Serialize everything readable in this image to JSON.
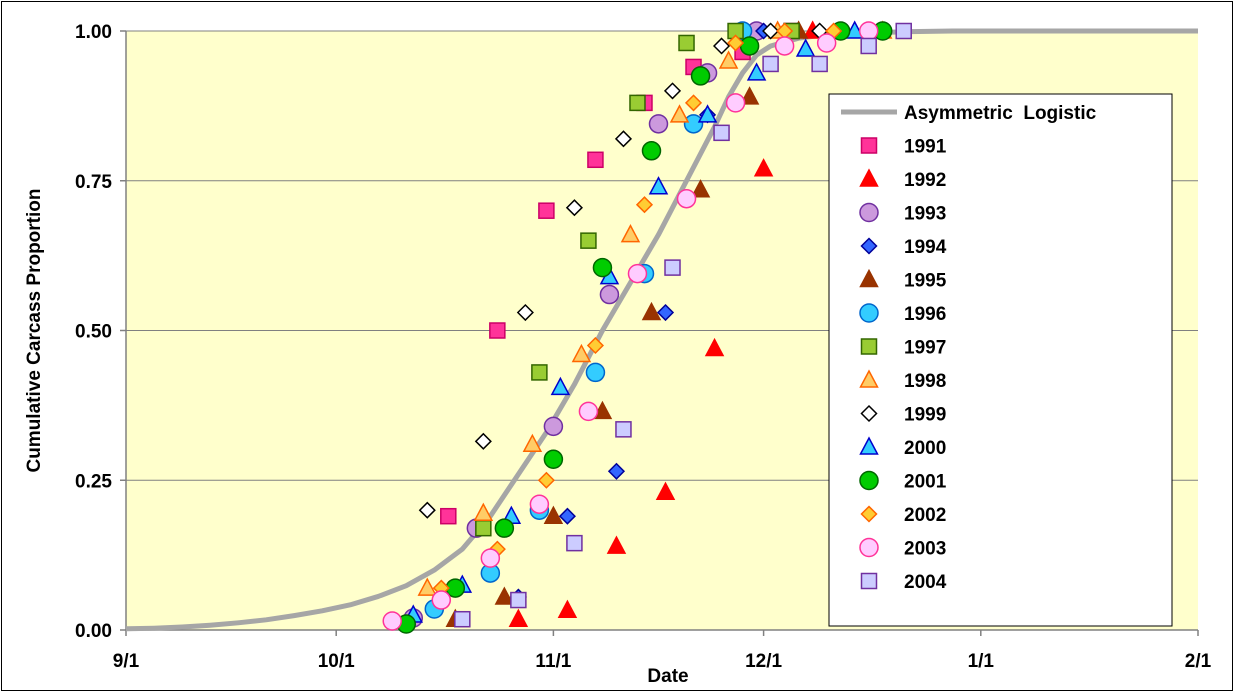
{
  "chart_data": {
    "type": "scatter",
    "title": "",
    "xlabel": "Date",
    "ylabel": "Cumulative Carcass Proportion",
    "x_unit": "day of season (9/1 = 0)",
    "xlim": [
      0,
      153
    ],
    "ylim": [
      0,
      1
    ],
    "x_ticks": [
      {
        "label": "9/1",
        "value": 0
      },
      {
        "label": "10/1",
        "value": 30
      },
      {
        "label": "11/1",
        "value": 61
      },
      {
        "label": "12/1",
        "value": 91
      },
      {
        "label": "1/1",
        "value": 122
      },
      {
        "label": "2/1",
        "value": 153
      }
    ],
    "y_ticks": [
      {
        "label": "0.00",
        "value": 0
      },
      {
        "label": "0.25",
        "value": 0.25
      },
      {
        "label": "0.50",
        "value": 0.5
      },
      {
        "label": "0.75",
        "value": 0.75
      },
      {
        "label": "1.00",
        "value": 1
      }
    ],
    "grid": true,
    "plot_background": "#ffffcc",
    "legend_position": "right",
    "fit_curve": {
      "name": "Asymmetric  Logistic",
      "color": "#a6a6a6",
      "points": [
        [
          0,
          0.002
        ],
        [
          4,
          0.003
        ],
        [
          8,
          0.005
        ],
        [
          12,
          0.008
        ],
        [
          16,
          0.012
        ],
        [
          20,
          0.017
        ],
        [
          24,
          0.024
        ],
        [
          28,
          0.032
        ],
        [
          32,
          0.042
        ],
        [
          36,
          0.056
        ],
        [
          40,
          0.074
        ],
        [
          44,
          0.1
        ],
        [
          48,
          0.135
        ],
        [
          52,
          0.19
        ],
        [
          56,
          0.26
        ],
        [
          60,
          0.33
        ],
        [
          64,
          0.41
        ],
        [
          68,
          0.5
        ],
        [
          72,
          0.58
        ],
        [
          76,
          0.66
        ],
        [
          80,
          0.75
        ],
        [
          84,
          0.84
        ],
        [
          86,
          0.89
        ],
        [
          88,
          0.93
        ],
        [
          90,
          0.96
        ],
        [
          92,
          0.975
        ],
        [
          96,
          0.988
        ],
        [
          100,
          0.994
        ],
        [
          106,
          0.997
        ],
        [
          112,
          0.999
        ],
        [
          118,
          1.0
        ],
        [
          126,
          1.0
        ],
        [
          140,
          1.0
        ],
        [
          153,
          1.0
        ]
      ]
    },
    "series": [
      {
        "name": "1991",
        "marker": "square",
        "fill": "#ff3399",
        "stroke": "#cc0066",
        "points": [
          [
            46,
            0.19
          ],
          [
            53,
            0.5
          ],
          [
            60,
            0.7
          ],
          [
            67,
            0.785
          ],
          [
            74,
            0.88
          ],
          [
            81,
            0.94
          ],
          [
            88,
            0.965
          ],
          [
            95,
            1.0
          ]
        ]
      },
      {
        "name": "1992",
        "marker": "triangle",
        "fill": "#ff0000",
        "stroke": "#ff0000",
        "points": [
          [
            56,
            0.018
          ],
          [
            63,
            0.033
          ],
          [
            70,
            0.14
          ],
          [
            77,
            0.23
          ],
          [
            84,
            0.47
          ],
          [
            91,
            0.77
          ],
          [
            98,
            1.0
          ]
        ]
      },
      {
        "name": "1993",
        "marker": "circle",
        "fill": "#cc99dd",
        "stroke": "#7030a0",
        "points": [
          [
            41,
            0.02
          ],
          [
            50,
            0.17
          ],
          [
            61,
            0.34
          ],
          [
            69,
            0.56
          ],
          [
            76,
            0.845
          ],
          [
            83,
            0.93
          ],
          [
            90,
            1.0
          ]
        ]
      },
      {
        "name": "1994",
        "marker": "diamond",
        "fill": "#3366ff",
        "stroke": "#000099",
        "points": [
          [
            56,
            0.055
          ],
          [
            63,
            0.19
          ],
          [
            70,
            0.265
          ],
          [
            77,
            0.53
          ],
          [
            83,
            0.86
          ],
          [
            91,
            1.0
          ]
        ]
      },
      {
        "name": "1995",
        "marker": "triangle",
        "fill": "#993300",
        "stroke": "#993300",
        "points": [
          [
            47,
            0.018
          ],
          [
            54,
            0.055
          ],
          [
            61,
            0.19
          ],
          [
            68,
            0.365
          ],
          [
            75,
            0.53
          ],
          [
            82,
            0.735
          ],
          [
            89,
            0.89
          ],
          [
            96,
            1.0
          ]
        ]
      },
      {
        "name": "1996",
        "marker": "circle",
        "fill": "#33ccff",
        "stroke": "#0066cc",
        "points": [
          [
            44,
            0.035
          ],
          [
            52,
            0.095
          ],
          [
            59,
            0.2
          ],
          [
            67,
            0.43
          ],
          [
            74,
            0.595
          ],
          [
            81,
            0.845
          ],
          [
            88,
            1.0
          ]
        ]
      },
      {
        "name": "1997",
        "marker": "square",
        "fill": "#99cc33",
        "stroke": "#336600",
        "points": [
          [
            51,
            0.17
          ],
          [
            59,
            0.43
          ],
          [
            66,
            0.65
          ],
          [
            73,
            0.88
          ],
          [
            80,
            0.98
          ],
          [
            87,
            1.0
          ],
          [
            95,
            1.0
          ]
        ]
      },
      {
        "name": "1998",
        "marker": "triangle",
        "fill": "#ffcc66",
        "stroke": "#ff6600",
        "points": [
          [
            43,
            0.07
          ],
          [
            51,
            0.195
          ],
          [
            58,
            0.31
          ],
          [
            65,
            0.46
          ],
          [
            72,
            0.66
          ],
          [
            79,
            0.86
          ],
          [
            86,
            0.95
          ],
          [
            93,
            1.0
          ],
          [
            108,
            1.0
          ]
        ]
      },
      {
        "name": "1999",
        "marker": "diamond",
        "fill": "#ffffff",
        "stroke": "#000000",
        "points": [
          [
            43,
            0.2
          ],
          [
            51,
            0.315
          ],
          [
            57,
            0.53
          ],
          [
            64,
            0.705
          ],
          [
            71,
            0.82
          ],
          [
            78,
            0.9
          ],
          [
            85,
            0.975
          ],
          [
            92,
            1.0
          ],
          [
            99,
            1.0
          ]
        ]
      },
      {
        "name": "2000",
        "marker": "triangle",
        "fill": "#33ccff",
        "stroke": "#0000cc",
        "points": [
          [
            41,
            0.025
          ],
          [
            48,
            0.075
          ],
          [
            55,
            0.19
          ],
          [
            62,
            0.405
          ],
          [
            69,
            0.59
          ],
          [
            76,
            0.74
          ],
          [
            83,
            0.86
          ],
          [
            90,
            0.93
          ],
          [
            97,
            0.97
          ],
          [
            104,
            1.0
          ]
        ]
      },
      {
        "name": "2001",
        "marker": "circle",
        "fill": "#00cc00",
        "stroke": "#006600",
        "points": [
          [
            40,
            0.01
          ],
          [
            47,
            0.07
          ],
          [
            54,
            0.17
          ],
          [
            61,
            0.285
          ],
          [
            68,
            0.605
          ],
          [
            75,
            0.8
          ],
          [
            82,
            0.925
          ],
          [
            89,
            0.975
          ],
          [
            102,
            1.0
          ],
          [
            108,
            1.0
          ]
        ]
      },
      {
        "name": "2002",
        "marker": "diamond",
        "fill": "#ffcc33",
        "stroke": "#ff6600",
        "points": [
          [
            45,
            0.07
          ],
          [
            53,
            0.135
          ],
          [
            60,
            0.25
          ],
          [
            67,
            0.475
          ],
          [
            74,
            0.71
          ],
          [
            81,
            0.88
          ],
          [
            87,
            0.98
          ],
          [
            94,
            1.0
          ],
          [
            101,
            1.0
          ]
        ]
      },
      {
        "name": "2003",
        "marker": "circle",
        "fill": "#ffccff",
        "stroke": "#ff3399",
        "points": [
          [
            38,
            0.015
          ],
          [
            45,
            0.05
          ],
          [
            52,
            0.12
          ],
          [
            59,
            0.21
          ],
          [
            66,
            0.365
          ],
          [
            73,
            0.595
          ],
          [
            80,
            0.72
          ],
          [
            87,
            0.88
          ],
          [
            94,
            0.975
          ],
          [
            100,
            0.98
          ],
          [
            106,
            1.0
          ]
        ]
      },
      {
        "name": "2004",
        "marker": "square",
        "fill": "#ccccff",
        "stroke": "#7030a0",
        "points": [
          [
            48,
            0.018
          ],
          [
            56,
            0.05
          ],
          [
            64,
            0.145
          ],
          [
            71,
            0.335
          ],
          [
            78,
            0.605
          ],
          [
            85,
            0.83
          ],
          [
            92,
            0.945
          ],
          [
            99,
            0.945
          ],
          [
            106,
            0.975
          ],
          [
            111,
            1.0
          ]
        ]
      }
    ]
  }
}
